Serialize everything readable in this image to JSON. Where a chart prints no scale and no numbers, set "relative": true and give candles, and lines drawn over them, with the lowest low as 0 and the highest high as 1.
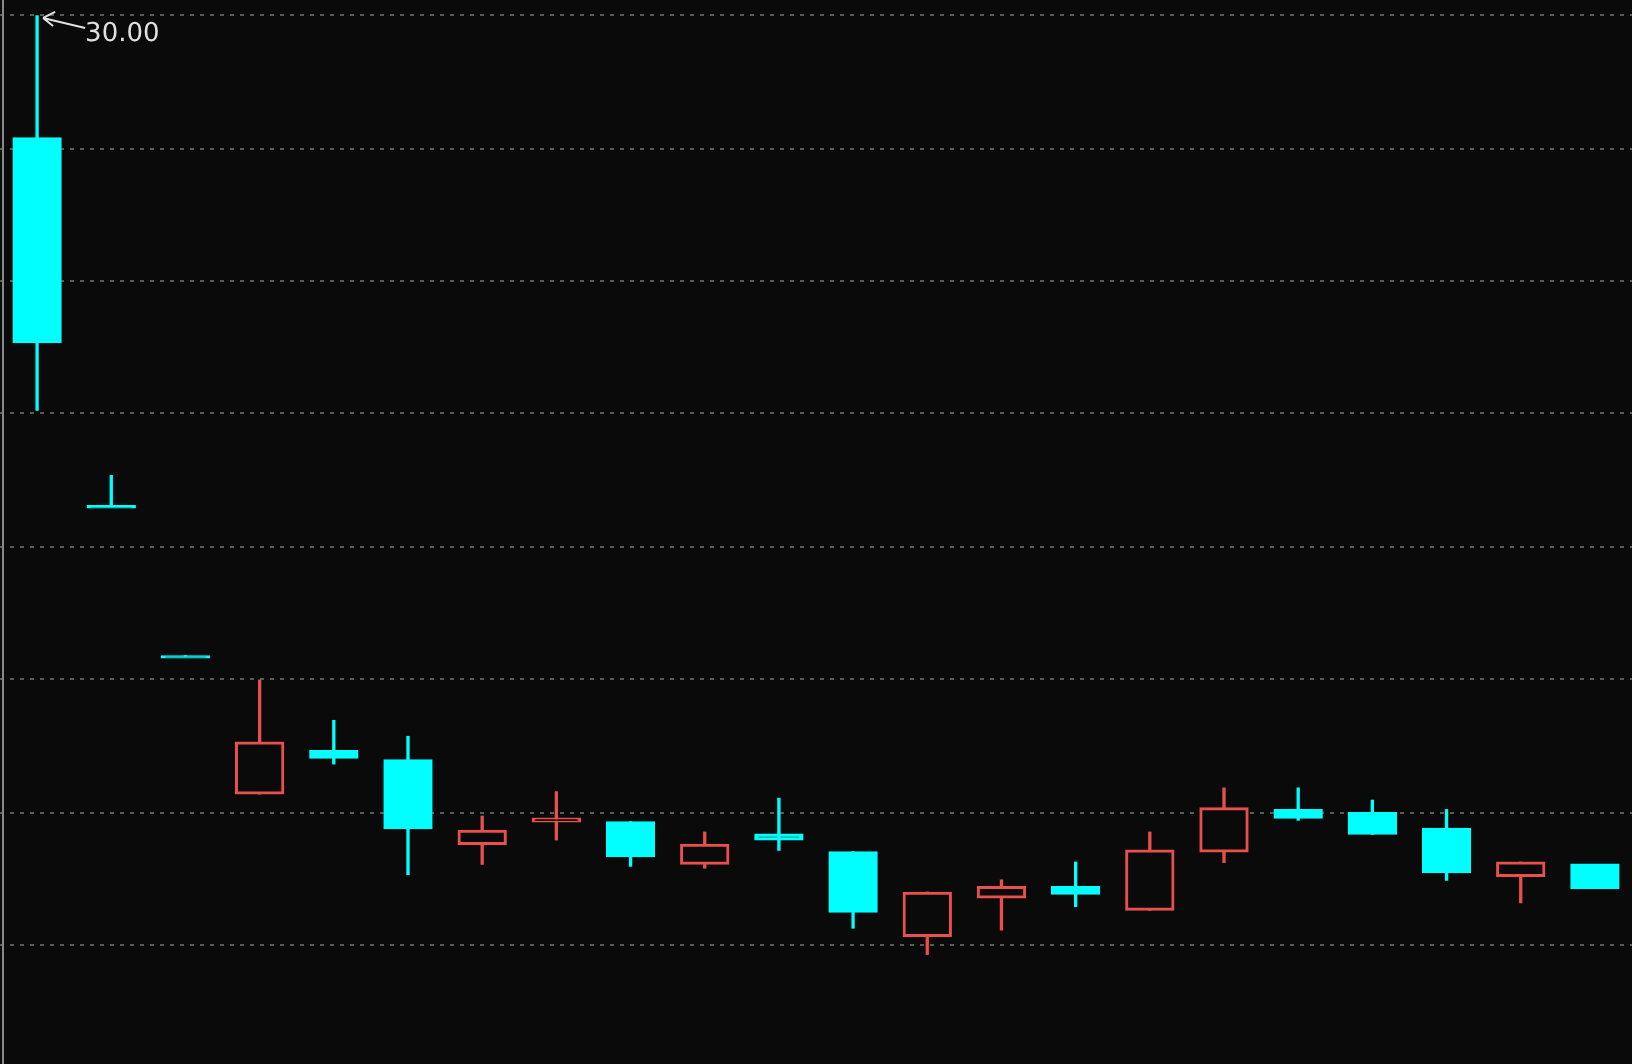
{
  "chart_data": {
    "type": "candlestick",
    "relative": true,
    "grid": true,
    "annotations": [
      "30.00"
    ],
    "categories": [
      null,
      null,
      null,
      null,
      null,
      null,
      null,
      null,
      null,
      null,
      null,
      null,
      null,
      null,
      null,
      null,
      null,
      null,
      null,
      null,
      null,
      null
    ],
    "ohlc": [
      [
        0.87,
        1.0,
        0.58,
        0.652
      ],
      [
        0.478,
        0.51,
        0.478,
        0.478
      ],
      [
        0.318,
        0.318,
        0.318,
        0.318
      ],
      [
        0.171,
        0.292,
        0.171,
        0.226
      ],
      [
        0.217,
        0.249,
        0.203,
        0.209
      ],
      [
        0.207,
        0.232,
        0.085,
        0.134
      ],
      [
        0.117,
        0.147,
        0.096,
        0.132
      ],
      [
        0.141,
        0.173,
        0.122,
        0.145
      ],
      [
        0.141,
        0.141,
        0.094,
        0.104
      ],
      [
        0.096,
        0.13,
        0.092,
        0.117
      ],
      [
        0.128,
        0.166,
        0.111,
        0.122
      ],
      [
        0.109,
        0.109,
        0.028,
        0.045
      ],
      [
        0.019,
        0.066,
        0.0,
        0.066
      ],
      [
        0.06,
        0.079,
        0.026,
        0.072
      ],
      [
        0.072,
        0.098,
        0.051,
        0.064
      ],
      [
        0.047,
        0.13,
        0.047,
        0.111
      ],
      [
        0.109,
        0.177,
        0.098,
        0.156
      ],
      [
        0.154,
        0.177,
        0.143,
        0.145
      ],
      [
        0.151,
        0.164,
        0.128,
        0.128
      ],
      [
        0.134,
        0.154,
        0.079,
        0.087
      ],
      [
        0.083,
        0.098,
        0.055,
        0.098
      ],
      [
        0.096,
        0.096,
        0.07,
        0.07
      ]
    ],
    "colors": [
      "#00ffff",
      "#00ffff",
      "#00ffff",
      "#e8504c",
      "#00ffff",
      "#00ffff",
      "#e8504c",
      "#e8504c",
      "#00ffff",
      "#e8504c",
      "#00ffff",
      "#00ffff",
      "#e8504c",
      "#e8504c",
      "#00ffff",
      "#e8504c",
      "#e8504c",
      "#00ffff",
      "#00ffff",
      "#00ffff",
      "#e8504c",
      "#00ffff"
    ]
  }
}
